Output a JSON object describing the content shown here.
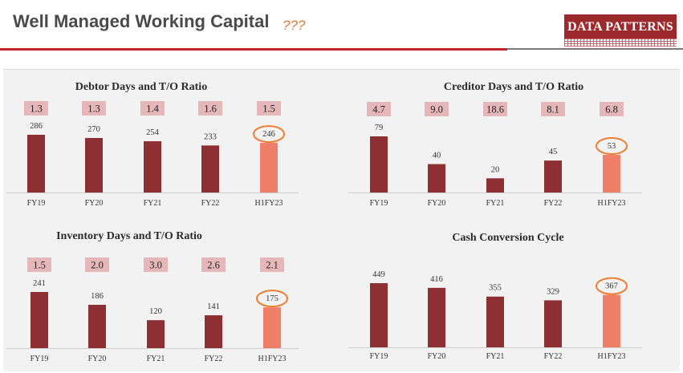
{
  "header": {
    "title": "Well Managed Working Capital",
    "annotation": "???",
    "logo_text": "DATA PATTERNS"
  },
  "colors": {
    "bar": "#8e3033",
    "highlight_bar": "#f07f6a",
    "ratio_box": "#e5b7b9",
    "highlight_circle": "#ee7d31"
  },
  "chart_data": [
    {
      "type": "bar",
      "title": "Debtor Days and T/O Ratio",
      "categories": [
        "FY19",
        "FY20",
        "FY21",
        "FY22",
        "H1FY23"
      ],
      "values": [
        286,
        270,
        254,
        233,
        246
      ],
      "ratios": [
        "1.3",
        "1.3",
        "1.4",
        "1.6",
        "1.5"
      ],
      "highlight_index": 4
    },
    {
      "type": "bar",
      "title": "Creditor Days and T/O Ratio",
      "categories": [
        "FY19",
        "FY20",
        "FY21",
        "FY22",
        "H1FY23"
      ],
      "values": [
        79,
        40,
        20,
        45,
        53
      ],
      "ratios": [
        "4.7",
        "9.0",
        "18.6",
        "8.1",
        "6.8"
      ],
      "highlight_index": 4
    },
    {
      "type": "bar",
      "title": "Inventory Days and T/O Ratio",
      "categories": [
        "FY19",
        "FY20",
        "FY21",
        "FY22",
        "H1FY23"
      ],
      "values": [
        241,
        186,
        120,
        141,
        175
      ],
      "ratios": [
        "1.5",
        "2.0",
        "3.0",
        "2.6",
        "2.1"
      ],
      "highlight_index": 4
    },
    {
      "type": "bar",
      "title": "Cash Conversion Cycle",
      "categories": [
        "FY19",
        "FY20",
        "FY21",
        "FY22",
        "H1FY23"
      ],
      "values": [
        449,
        416,
        355,
        329,
        367
      ],
      "ratios": [],
      "highlight_index": 4
    }
  ]
}
